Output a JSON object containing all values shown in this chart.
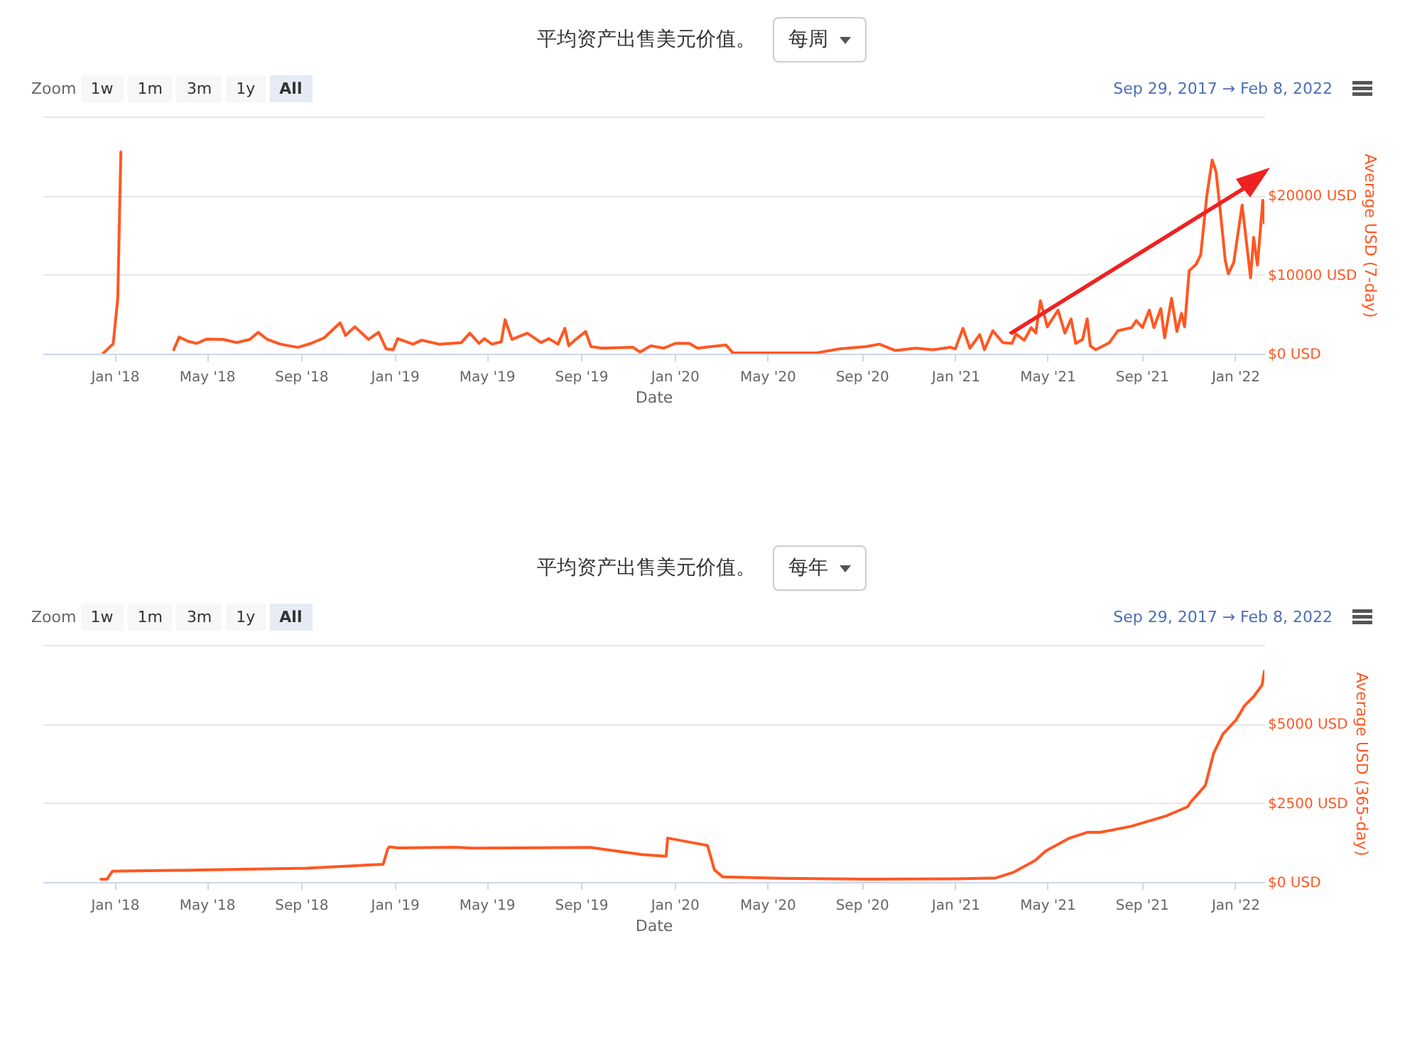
{
  "chart_data": [
    {
      "type": "line",
      "title": "平均资产出售美元价值。",
      "subtitle": "每周",
      "xlabel": "Date",
      "ylabel": "Average USD (7-day)",
      "annotations": [
        "Zoom",
        "1w",
        "1m",
        "3m",
        "1y",
        "All",
        "Sep 29, 2017 → Feb 8, 2022"
      ],
      "x": [
        "2017-12-17",
        "2017-12-30",
        "2018-01-05",
        "2018-01-09",
        "2018-01-10",
        "2018-03-19",
        "2018-03-26",
        "2018-04-07",
        "2018-04-18",
        "2018-05-01",
        "2018-05-23",
        "2018-06-09",
        "2018-06-26",
        "2018-07-07",
        "2018-07-19",
        "2018-08-05",
        "2018-08-28",
        "2018-09-14",
        "2018-10-01",
        "2018-10-22",
        "2018-10-29",
        "2018-11-10",
        "2018-11-28",
        "2018-12-11",
        "2018-12-21",
        "2018-12-30",
        "2019-01-05",
        "2019-01-25",
        "2019-02-05",
        "2019-02-28",
        "2019-03-29",
        "2019-04-09",
        "2019-04-21",
        "2019-04-28",
        "2019-05-08",
        "2019-05-20",
        "2019-05-25",
        "2019-06-03",
        "2019-06-23",
        "2019-07-11",
        "2019-07-21",
        "2019-08-02",
        "2019-08-11",
        "2019-08-16",
        "2019-08-25",
        "2019-09-07",
        "2019-09-14",
        "2019-09-28",
        "2019-11-08",
        "2019-11-17",
        "2019-12-01",
        "2019-12-18",
        "2020-01-02",
        "2020-01-20",
        "2020-01-31",
        "2020-02-18",
        "2020-03-08",
        "2020-03-17",
        "2020-07-04",
        "2020-08-03",
        "2020-09-07",
        "2020-09-24",
        "2020-10-15",
        "2020-11-10",
        "2020-12-03",
        "2020-12-26",
        "2021-01-01",
        "2021-01-11",
        "2021-01-20",
        "2021-02-02",
        "2021-02-08",
        "2021-02-19",
        "2021-03-04",
        "2021-03-16",
        "2021-03-21",
        "2021-04-01",
        "2021-04-10",
        "2021-04-16",
        "2021-04-22",
        "2021-05-01",
        "2021-05-15",
        "2021-05-24",
        "2021-06-01",
        "2021-06-07",
        "2021-06-16",
        "2021-06-22",
        "2021-06-26",
        "2021-07-03",
        "2021-07-21",
        "2021-08-01",
        "2021-08-19",
        "2021-08-25",
        "2021-09-02",
        "2021-09-11",
        "2021-09-17",
        "2021-09-26",
        "2021-10-01",
        "2021-10-10",
        "2021-10-17",
        "2021-10-23",
        "2021-10-27",
        "2021-11-02",
        "2021-11-11",
        "2021-11-17",
        "2021-11-25",
        "2021-12-02",
        "2021-12-07",
        "2021-12-13",
        "2021-12-19",
        "2021-12-23",
        "2021-12-30",
        "2022-01-10",
        "2022-01-17",
        "2022-01-21",
        "2022-01-25",
        "2022-01-30",
        "2022-02-06",
        "2022-02-08"
      ],
      "series": [
        {
          "color": "#ff5722",
          "values": [
            50,
            1250,
            7000,
            25500,
            null,
            500,
            2100,
            1550,
            1300,
            1850,
            1800,
            1400,
            1800,
            2700,
            1800,
            1200,
            800,
            1300,
            2000,
            3900,
            2300,
            3400,
            1800,
            2700,
            600,
            500,
            1900,
            1200,
            1700,
            1200,
            1400,
            2600,
            1300,
            1900,
            1200,
            1500,
            4300,
            1800,
            2600,
            1400,
            1900,
            1200,
            3200,
            1000,
            1800,
            2800,
            900,
            700,
            800,
            200,
            1000,
            700,
            1300,
            1300,
            700,
            900,
            1100,
            100,
            100,
            600,
            900,
            1200,
            400,
            700,
            500,
            800,
            600,
            3200,
            700,
            2400,
            500,
            2900,
            1400,
            1300,
            2500,
            1700,
            3300,
            2600,
            6700,
            3400,
            5500,
            2600,
            4400,
            1300,
            1800,
            4400,
            1000,
            500,
            1400,
            2900,
            3300,
            4200,
            3300,
            5500,
            3300,
            5700,
            2000,
            7000,
            2800,
            5100,
            3400,
            10500,
            11300,
            12500,
            20000,
            24500,
            23000,
            17600,
            11800,
            10100,
            11500,
            18800,
            13000,
            9600,
            14700,
            11200,
            19400,
            16500
          ]
        }
      ],
      "xlim": [
        "2017-09-29",
        "2022-02-08"
      ],
      "xticks": [
        {
          "value": "2018-01-01",
          "label": "Jan '18"
        },
        {
          "value": "2018-05-01",
          "label": "May '18"
        },
        {
          "value": "2018-09-01",
          "label": "Sep '18"
        },
        {
          "value": "2019-01-01",
          "label": "Jan '19"
        },
        {
          "value": "2019-05-01",
          "label": "May '19"
        },
        {
          "value": "2019-09-01",
          "label": "Sep '19"
        },
        {
          "value": "2020-01-01",
          "label": "Jan '20"
        },
        {
          "value": "2020-05-01",
          "label": "May '20"
        },
        {
          "value": "2020-09-01",
          "label": "Sep '20"
        },
        {
          "value": "2021-01-01",
          "label": "Jan '21"
        },
        {
          "value": "2021-05-01",
          "label": "May '21"
        },
        {
          "value": "2021-09-01",
          "label": "Sep '21"
        },
        {
          "value": "2022-01-01",
          "label": "Jan '22"
        }
      ],
      "ylim": [
        0,
        30000
      ],
      "yticks": [
        {
          "value": 0,
          "label": "$0 USD"
        },
        {
          "value": 10000,
          "label": "$10000 USD"
        },
        {
          "value": 20000,
          "label": "$20000 USD"
        },
        {
          "value": 30000,
          "label": null
        }
      ],
      "grid": "y"
    },
    {
      "type": "line",
      "title": "平均资产出售美元价值。",
      "subtitle": "每年",
      "xlabel": "Date",
      "ylabel": "Average USD (365-day)",
      "annotations": [
        "Zoom",
        "1w",
        "1m",
        "3m",
        "1y",
        "All",
        "Sep 29, 2017 → Feb 8, 2022"
      ],
      "x": [
        "2017-12-14",
        "2017-12-22",
        "2017-12-29",
        "2018-01-12",
        "2018-03-22",
        "2018-09-08",
        "2018-12-17",
        "2018-12-23",
        "2018-12-25",
        "2019-01-06",
        "2019-03-21",
        "2019-04-12",
        "2019-09-13",
        "2019-11-19",
        "2019-12-18",
        "2019-12-21",
        "2019-12-23",
        "2020-02-10",
        "2020-02-13",
        "2020-02-22",
        "2020-03-04",
        "2020-05-20",
        "2020-09-11",
        "2021-01-02",
        "2021-02-23",
        "2021-03-17",
        "2021-04-15",
        "2021-04-29",
        "2021-05-30",
        "2021-06-22",
        "2021-07-09",
        "2021-08-18",
        "2021-10-03",
        "2021-10-31",
        "2021-11-04",
        "2021-11-23",
        "2021-12-04",
        "2021-12-16",
        "2022-01-02",
        "2022-01-13",
        "2022-01-25",
        "2022-02-05",
        "2022-02-08"
      ],
      "series": [
        {
          "color": "#ff5722",
          "values": [
            90,
            90,
            340,
            350,
            370,
            440,
            560,
            1050,
            1110,
            1080,
            1100,
            1070,
            1095,
            870,
            820,
            820,
            1390,
            1170,
            1150,
            385,
            160,
            120,
            90,
            100,
            130,
            300,
            680,
            980,
            1390,
            1570,
            1570,
            1760,
            2090,
            2380,
            2530,
            3050,
            4080,
            4680,
            5120,
            5570,
            5860,
            6230,
            6670
          ]
        }
      ],
      "xlim": [
        "2017-09-29",
        "2022-02-08"
      ],
      "xticks": [
        {
          "value": "2018-01-01",
          "label": "Jan '18"
        },
        {
          "value": "2018-05-01",
          "label": "May '18"
        },
        {
          "value": "2018-09-01",
          "label": "Sep '18"
        },
        {
          "value": "2019-01-01",
          "label": "Jan '19"
        },
        {
          "value": "2019-05-01",
          "label": "May '19"
        },
        {
          "value": "2019-09-01",
          "label": "Sep '19"
        },
        {
          "value": "2020-01-01",
          "label": "Jan '20"
        },
        {
          "value": "2020-05-01",
          "label": "May '20"
        },
        {
          "value": "2020-09-01",
          "label": "Sep '20"
        },
        {
          "value": "2021-01-01",
          "label": "Jan '21"
        },
        {
          "value": "2021-05-01",
          "label": "May '21"
        },
        {
          "value": "2021-09-01",
          "label": "Sep '21"
        },
        {
          "value": "2022-01-01",
          "label": "Jan '22"
        }
      ],
      "ylim": [
        0,
        7500
      ],
      "yticks": [
        {
          "value": 0,
          "label": "$0 USD"
        },
        {
          "value": 2500,
          "label": "$2500 USD"
        },
        {
          "value": 5000,
          "label": "$5000 USD"
        },
        {
          "value": 7500,
          "label": null
        }
      ],
      "grid": "y"
    }
  ]
}
